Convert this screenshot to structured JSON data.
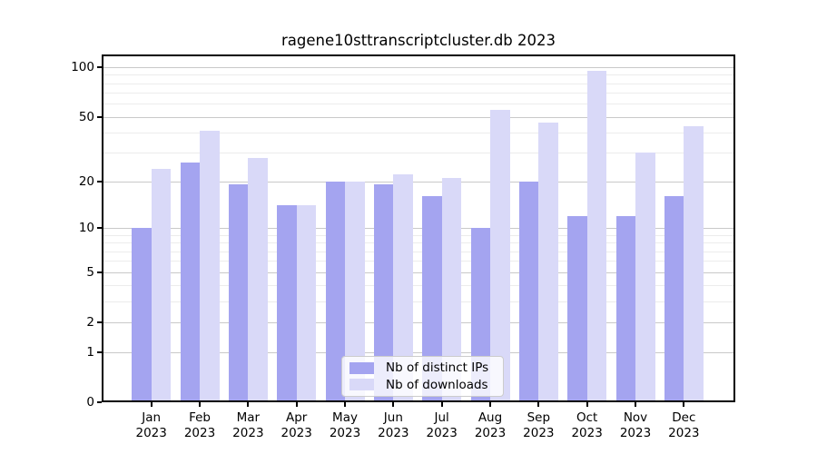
{
  "title": "ragene10sttranscriptcluster.db 2023",
  "colors": {
    "ips_bar": "#a4a4f0",
    "downloads_bar": "#d9d9f8",
    "grid_major": "#c9c9c9",
    "grid_minor": "#ececec",
    "spine": "#000000",
    "legend_border": "#cccccc"
  },
  "chart_data": {
    "type": "bar",
    "title": "ragene10sttranscriptcluster.db 2023",
    "categories": [
      "Jan",
      "Feb",
      "Mar",
      "Apr",
      "May",
      "Jun",
      "Jul",
      "Aug",
      "Sep",
      "Oct",
      "Nov",
      "Dec"
    ],
    "year_label": "2023",
    "series": [
      {
        "name": "Nb of distinct IPs",
        "color_key": "ips_bar",
        "values": [
          10,
          26,
          19,
          14,
          20,
          19,
          16,
          10,
          20,
          12,
          12,
          16
        ]
      },
      {
        "name": "Nb of downloads",
        "color_key": "downloads_bar",
        "values": [
          24,
          41,
          28,
          14,
          20,
          22,
          21,
          55,
          46,
          95,
          30,
          44
        ]
      }
    ],
    "yscale": "log1p",
    "ylim": [
      0,
      105
    ],
    "yticks_major": [
      0,
      1,
      2,
      5,
      10,
      20,
      50,
      100
    ],
    "yticks_minor": [
      3,
      4,
      6,
      7,
      8,
      9,
      30,
      40,
      60,
      70,
      80,
      90
    ],
    "grid": true,
    "legend_position": "lower center"
  }
}
